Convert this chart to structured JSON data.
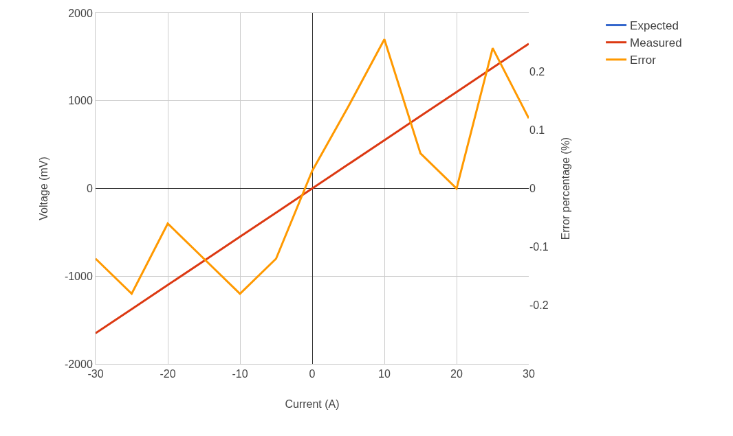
{
  "chart_data": {
    "type": "line",
    "xlabel": "Current (A)",
    "ylabel": "Voltage (mV)",
    "y2label": "Error percentage (%)",
    "x": [
      -30,
      -25,
      -20,
      -15,
      -10,
      -5,
      0,
      5,
      10,
      15,
      20,
      25,
      30
    ],
    "series": [
      {
        "name": "Expected",
        "color": "#3366cc",
        "values": [
          null,
          null,
          null,
          null,
          null,
          null,
          null,
          null,
          null,
          null,
          null,
          null,
          null
        ]
      },
      {
        "name": "Measured",
        "color": "#dc3912",
        "values": [
          -1650,
          -1375,
          -1100,
          -825,
          -550,
          -275,
          0,
          275,
          550,
          825,
          1100,
          1375,
          1650
        ]
      },
      {
        "name": "Error",
        "color": "#ff9900",
        "axis": "y2",
        "values": [
          -0.12,
          -0.18,
          -0.06,
          -0.12,
          -0.18,
          -0.12,
          0.03,
          0.14,
          0.255,
          0.06,
          0,
          0.24,
          0.12
        ]
      }
    ],
    "xlim": [
      -30,
      30
    ],
    "xticks": [
      -30,
      -20,
      -10,
      0,
      10,
      20,
      30
    ],
    "ylim": [
      -2000,
      2000
    ],
    "yticks": [
      -2000,
      -1000,
      0,
      1000,
      2000
    ],
    "y2lim": [
      -0.3,
      0.3
    ],
    "y2ticks": [
      -0.2,
      -0.1,
      0,
      0.1,
      0.2
    ],
    "grid": true,
    "legend": "top right",
    "marker": "none",
    "line_style": "solid"
  }
}
